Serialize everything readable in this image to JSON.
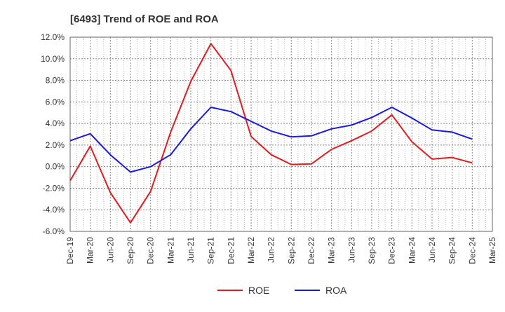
{
  "chart_data": {
    "type": "line",
    "title": "[6493]  Trend of ROE and ROA",
    "xlabel": "",
    "ylabel": "",
    "ylim": [
      -6.0,
      12.0
    ],
    "y_ticks": [
      "12.0%",
      "10.0%",
      "8.0%",
      "6.0%",
      "4.0%",
      "2.0%",
      "0.0%",
      "-2.0%",
      "-4.0%",
      "-6.0%"
    ],
    "y_tick_values": [
      12,
      10,
      8,
      6,
      4,
      2,
      0,
      -2,
      -4,
      -6
    ],
    "categories": [
      "Dec-19",
      "Mar-20",
      "Jun-20",
      "Sep-20",
      "Dec-20",
      "Mar-21",
      "Jun-21",
      "Sep-21",
      "Dec-21",
      "Mar-22",
      "Jun-22",
      "Sep-22",
      "Dec-22",
      "Mar-23",
      "Jun-23",
      "Sep-23",
      "Dec-23",
      "Mar-24",
      "Jun-24",
      "Sep-24",
      "Dec-24",
      "Mar-25"
    ],
    "grid": true,
    "legend_position": "bottom",
    "series": [
      {
        "name": "ROE",
        "color": "#e41a1c",
        "values": [
          -1.3,
          1.9,
          -2.4,
          -5.2,
          -2.3,
          3.2,
          7.9,
          11.4,
          8.9,
          2.8,
          1.1,
          0.2,
          0.25,
          1.6,
          2.4,
          3.3,
          4.8,
          2.3,
          0.7,
          0.85,
          0.35,
          null
        ]
      },
      {
        "name": "ROA",
        "color": "#1a1adb",
        "values": [
          2.4,
          3.05,
          1.1,
          -0.5,
          0.0,
          1.1,
          3.5,
          5.5,
          5.1,
          4.2,
          3.3,
          2.75,
          2.85,
          3.5,
          3.85,
          4.55,
          5.5,
          4.5,
          3.4,
          3.2,
          2.55,
          null
        ]
      }
    ]
  }
}
